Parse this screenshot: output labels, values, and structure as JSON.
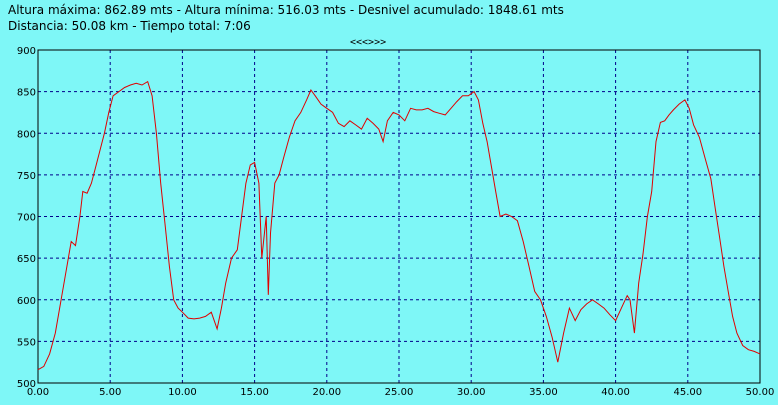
{
  "header": {
    "line1": "Altura máxima: 862.89 mts - Altura mínima: 516.03 mts - Desnivel acumulado: 1848.61 mts",
    "line2": "Distancia: 50.08 km - Tiempo total: 7:06"
  },
  "nav_label": "<<<>>>",
  "colors": {
    "background": "#7ef7f7",
    "line": "#e00000",
    "grid": "#00008b"
  },
  "chart_data": {
    "type": "line",
    "title": "",
    "xlabel": "",
    "ylabel": "",
    "xlim": [
      0,
      50
    ],
    "ylim": [
      500,
      900
    ],
    "grid": true,
    "x_ticks": [
      0,
      5,
      10,
      15,
      20,
      25,
      30,
      35,
      40,
      45,
      50
    ],
    "x_tick_labels": [
      "0.00",
      "5.00",
      "10.00",
      "15.00",
      "20.00",
      "25.00",
      "30.00",
      "35.00",
      "40.00",
      "45.00",
      "50.00"
    ],
    "y_ticks": [
      500,
      550,
      600,
      650,
      700,
      750,
      800,
      850,
      900
    ],
    "y_tick_labels": [
      "500",
      "550",
      "600",
      "650",
      "700",
      "750",
      "800",
      "850",
      "900"
    ],
    "series": [
      {
        "values": [
          [
            0.0,
            516
          ],
          [
            0.4,
            520
          ],
          [
            0.8,
            535
          ],
          [
            1.2,
            560
          ],
          [
            1.6,
            600
          ],
          [
            2.0,
            640
          ],
          [
            2.3,
            670
          ],
          [
            2.6,
            665
          ],
          [
            2.9,
            700
          ],
          [
            3.1,
            730
          ],
          [
            3.4,
            728
          ],
          [
            3.7,
            740
          ],
          [
            4.0,
            760
          ],
          [
            4.3,
            780
          ],
          [
            4.6,
            800
          ],
          [
            4.9,
            825
          ],
          [
            5.2,
            845
          ],
          [
            5.6,
            850
          ],
          [
            6.0,
            855
          ],
          [
            6.4,
            858
          ],
          [
            6.8,
            860
          ],
          [
            7.2,
            858
          ],
          [
            7.6,
            862
          ],
          [
            7.9,
            845
          ],
          [
            8.2,
            800
          ],
          [
            8.5,
            740
          ],
          [
            8.8,
            690
          ],
          [
            9.1,
            640
          ],
          [
            9.4,
            600
          ],
          [
            9.7,
            590
          ],
          [
            10.0,
            585
          ],
          [
            10.4,
            578
          ],
          [
            10.8,
            577
          ],
          [
            11.2,
            578
          ],
          [
            11.6,
            580
          ],
          [
            12.0,
            585
          ],
          [
            12.4,
            565
          ],
          [
            12.7,
            590
          ],
          [
            13.0,
            620
          ],
          [
            13.4,
            650
          ],
          [
            13.8,
            660
          ],
          [
            14.1,
            700
          ],
          [
            14.4,
            740
          ],
          [
            14.7,
            762
          ],
          [
            15.0,
            765
          ],
          [
            15.3,
            740
          ],
          [
            15.5,
            650
          ],
          [
            15.8,
            700
          ],
          [
            15.95,
            606
          ],
          [
            16.1,
            680
          ],
          [
            16.4,
            740
          ],
          [
            16.7,
            750
          ],
          [
            17.0,
            770
          ],
          [
            17.4,
            795
          ],
          [
            17.8,
            815
          ],
          [
            18.2,
            825
          ],
          [
            18.6,
            840
          ],
          [
            18.9,
            852
          ],
          [
            19.2,
            845
          ],
          [
            19.6,
            835
          ],
          [
            20.0,
            830
          ],
          [
            20.4,
            825
          ],
          [
            20.8,
            812
          ],
          [
            21.2,
            808
          ],
          [
            21.6,
            815
          ],
          [
            22.0,
            810
          ],
          [
            22.4,
            805
          ],
          [
            22.8,
            818
          ],
          [
            23.2,
            812
          ],
          [
            23.6,
            805
          ],
          [
            23.9,
            790
          ],
          [
            24.2,
            815
          ],
          [
            24.6,
            825
          ],
          [
            25.0,
            822
          ],
          [
            25.4,
            815
          ],
          [
            25.8,
            830
          ],
          [
            26.2,
            828
          ],
          [
            26.6,
            828
          ],
          [
            27.0,
            830
          ],
          [
            27.4,
            826
          ],
          [
            27.8,
            824
          ],
          [
            28.2,
            822
          ],
          [
            28.6,
            830
          ],
          [
            29.0,
            838
          ],
          [
            29.4,
            845
          ],
          [
            29.8,
            845
          ],
          [
            30.2,
            850
          ],
          [
            30.5,
            840
          ],
          [
            30.8,
            812
          ],
          [
            31.1,
            790
          ],
          [
            31.4,
            760
          ],
          [
            31.7,
            730
          ],
          [
            32.0,
            700
          ],
          [
            32.4,
            703
          ],
          [
            32.8,
            700
          ],
          [
            33.2,
            695
          ],
          [
            33.6,
            670
          ],
          [
            34.0,
            640
          ],
          [
            34.4,
            610
          ],
          [
            34.8,
            600
          ],
          [
            35.2,
            580
          ],
          [
            35.6,
            555
          ],
          [
            36.0,
            525
          ],
          [
            36.4,
            560
          ],
          [
            36.8,
            590
          ],
          [
            37.2,
            575
          ],
          [
            37.6,
            588
          ],
          [
            38.0,
            595
          ],
          [
            38.4,
            600
          ],
          [
            38.8,
            595
          ],
          [
            39.2,
            590
          ],
          [
            39.6,
            582
          ],
          [
            40.0,
            575
          ],
          [
            40.4,
            590
          ],
          [
            40.8,
            605
          ],
          [
            41.0,
            600
          ],
          [
            41.3,
            560
          ],
          [
            41.6,
            620
          ],
          [
            41.9,
            655
          ],
          [
            42.2,
            700
          ],
          [
            42.5,
            730
          ],
          [
            42.8,
            790
          ],
          [
            43.1,
            813
          ],
          [
            43.4,
            815
          ],
          [
            43.7,
            822
          ],
          [
            44.0,
            828
          ],
          [
            44.4,
            835
          ],
          [
            44.8,
            840
          ],
          [
            45.1,
            830
          ],
          [
            45.4,
            810
          ],
          [
            45.8,
            795
          ],
          [
            46.2,
            770
          ],
          [
            46.6,
            745
          ],
          [
            46.9,
            710
          ],
          [
            47.2,
            675
          ],
          [
            47.5,
            640
          ],
          [
            47.8,
            610
          ],
          [
            48.1,
            580
          ],
          [
            48.4,
            560
          ],
          [
            48.8,
            545
          ],
          [
            49.2,
            540
          ],
          [
            49.6,
            538
          ],
          [
            50.0,
            535
          ]
        ]
      }
    ]
  }
}
